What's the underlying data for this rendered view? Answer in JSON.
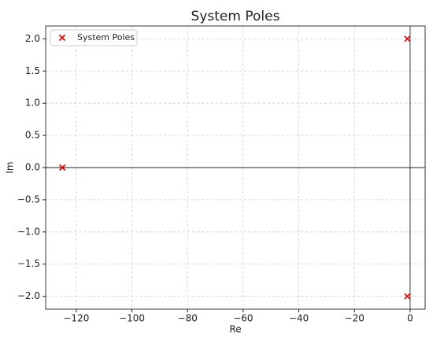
{
  "chart_data": {
    "type": "scatter",
    "title": "System Poles",
    "xlabel": "Re",
    "ylabel": "Im",
    "series": [
      {
        "name": "System Poles",
        "color": "#e00000",
        "x": [
          -125,
          -1,
          -1
        ],
        "values": [
          0,
          2,
          -2
        ]
      }
    ],
    "xlim": [
      -131,
      5.4
    ],
    "ylim": [
      -2.2,
      2.2
    ],
    "xticks": [
      {
        "value": -120,
        "label": "−120"
      },
      {
        "value": -100,
        "label": "−100"
      },
      {
        "value": -80,
        "label": "−80"
      },
      {
        "value": -60,
        "label": "−60"
      },
      {
        "value": -40,
        "label": "−40"
      },
      {
        "value": -20,
        "label": "−20"
      },
      0
    ],
    "yticks": [
      {
        "value": -2,
        "label": "−2.0"
      },
      {
        "value": -1.5,
        "label": "−1.5"
      },
      {
        "value": -1,
        "label": "−1.0"
      },
      {
        "value": -0.5,
        "label": "−0.5"
      },
      {
        "value": 0,
        "label": "0.0"
      },
      {
        "value": 0.5,
        "label": "0.5"
      },
      {
        "value": 1,
        "label": "1.0"
      },
      {
        "value": 1.5,
        "label": "1.5"
      },
      {
        "value": 2,
        "label": "2.0"
      }
    ],
    "grid": true,
    "legend": "upper left"
  }
}
